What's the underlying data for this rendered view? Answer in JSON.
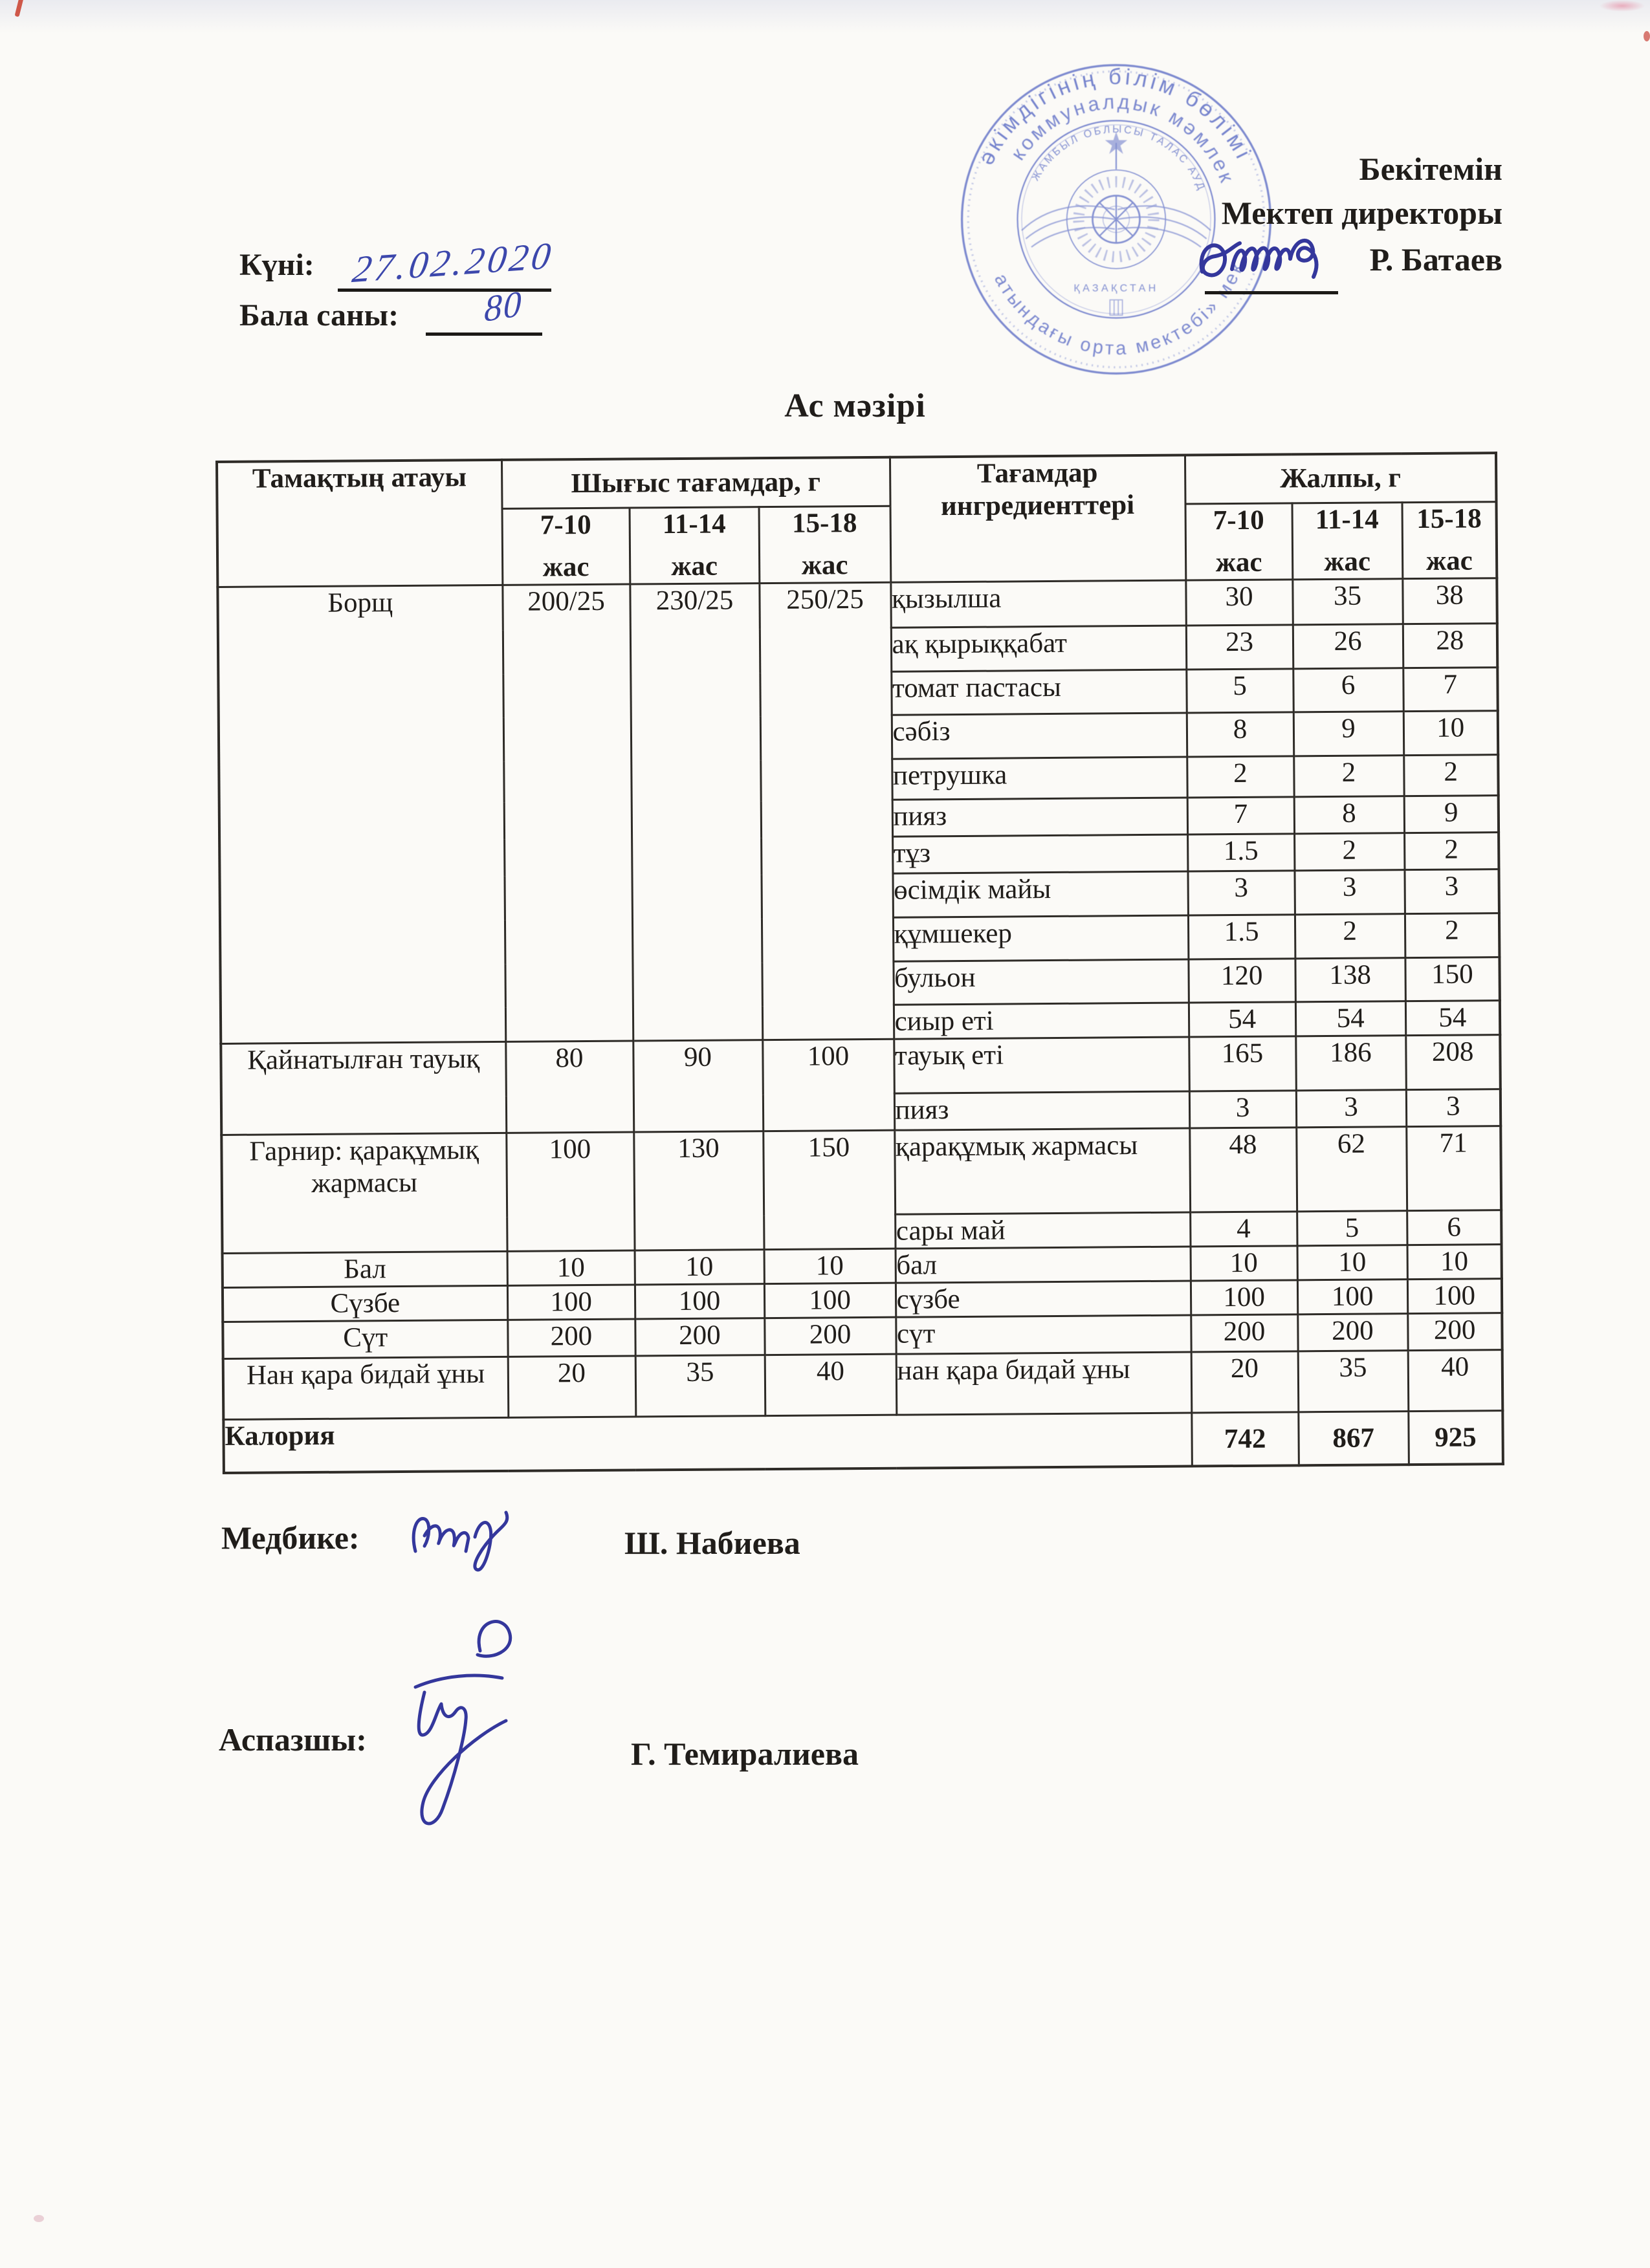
{
  "document": {
    "date_label": "Күні:",
    "date_value": "27.02.2020",
    "children_count_label": "Бала саны:",
    "children_count_value": "80",
    "title": "Ас мәзірі"
  },
  "approval": {
    "approve_word": "Бекітемін",
    "role": "Мектеп директоры",
    "director_name": "Р. Батаев"
  },
  "stamp": {
    "ring_text_outer": "әкімдігінің  білім  бөлімі  «Барбол",
    "ring_text_middle": "коммуналдык  мәмлекеттік",
    "ring_text_small": "ЖАМБЫЛ ОБЛЫСЫ ТАЛАС АУДАНЫ",
    "ring_text_bottom": "атындағы  орта  мектебі»  мекемесі",
    "emblem_text": "ҚАЗАҚСТАН",
    "color": "#5b6cc5"
  },
  "table": {
    "col1_header": "Тамақтың атауы",
    "output_group_header": "Шығыс тағамдар, г",
    "ingredients_header": "Тағамдар ингредиенттері",
    "total_group_header": "Жалпы, г",
    "age_groups": [
      "7-10",
      "11-14",
      "15-18"
    ],
    "age_suffix": "жас",
    "sections": [
      {
        "dish": "Борщ",
        "portions": [
          "200/25",
          "230/25",
          "250/25"
        ],
        "ingredients": [
          {
            "name": "қызылша",
            "values": [
              "30",
              "35",
              "38"
            ]
          },
          {
            "name": "ақ қырыққабат",
            "values": [
              "23",
              "26",
              "28"
            ]
          },
          {
            "name": "томат пастасы",
            "values": [
              "5",
              "6",
              "7"
            ]
          },
          {
            "name": "сәбіз",
            "values": [
              "8",
              "9",
              "10"
            ]
          },
          {
            "name": "петрушка",
            "values": [
              "2",
              "2",
              "2"
            ]
          },
          {
            "name": "пияз",
            "values": [
              "7",
              "8",
              "9"
            ]
          },
          {
            "name": "тұз",
            "values": [
              "1.5",
              "2",
              "2"
            ]
          },
          {
            "name": "өсімдік майы",
            "values": [
              "3",
              "3",
              "3"
            ]
          },
          {
            "name": "құмшекер",
            "values": [
              "1.5",
              "2",
              "2"
            ]
          },
          {
            "name": "бульон",
            "values": [
              "120",
              "138",
              "150"
            ]
          },
          {
            "name": "сиыр еті",
            "values": [
              "54",
              "54",
              "54"
            ]
          }
        ]
      },
      {
        "dish": "Қайнатылған тауық",
        "portions": [
          "80",
          "90",
          "100"
        ],
        "ingredients": [
          {
            "name": "тауық еті",
            "values": [
              "165",
              "186",
              "208"
            ]
          },
          {
            "name": "пияз",
            "values": [
              "3",
              "3",
              "3"
            ]
          }
        ]
      },
      {
        "dish": "Гарнир: қарақұмық жармасы",
        "portions": [
          "100",
          "130",
          "150"
        ],
        "ingredients": [
          {
            "name": "қарақұмық жармасы",
            "values": [
              "48",
              "62",
              "71"
            ]
          },
          {
            "name": "сары май",
            "values": [
              "4",
              "5",
              "6"
            ]
          }
        ]
      },
      {
        "dish": "Бал",
        "portions": [
          "10",
          "10",
          "10"
        ],
        "ingredients": [
          {
            "name": "бал",
            "values": [
              "10",
              "10",
              "10"
            ]
          }
        ]
      },
      {
        "dish": "Сүзбе",
        "portions": [
          "100",
          "100",
          "100"
        ],
        "ingredients": [
          {
            "name": "сүзбе",
            "values": [
              "100",
              "100",
              "100"
            ]
          }
        ]
      },
      {
        "dish": "Сүт",
        "portions": [
          "200",
          "200",
          "200"
        ],
        "ingredients": [
          {
            "name": "сүт",
            "values": [
              "200",
              "200",
              "200"
            ]
          }
        ]
      },
      {
        "dish": "Нан қара бидай ұны",
        "portions": [
          "20",
          "35",
          "40"
        ],
        "ingredients": [
          {
            "name": "нан қара бидай ұны",
            "values": [
              "20",
              "35",
              "40"
            ]
          }
        ]
      }
    ],
    "footer": {
      "label": "Калория",
      "values": [
        "742",
        "867",
        "925"
      ]
    }
  },
  "signatures": {
    "nurse_label": "Медбике:",
    "nurse_name": "Ш. Набиева",
    "cook_label": "Аспазшы:",
    "cook_name": "Г. Темиралиева"
  }
}
